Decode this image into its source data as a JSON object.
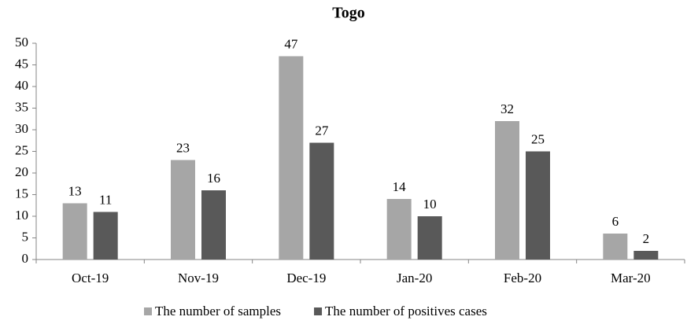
{
  "chart_data": {
    "type": "bar",
    "title": "Togo",
    "categories": [
      "Oct-19",
      "Nov-19",
      "Dec-19",
      "Jan-20",
      "Feb-20",
      "Mar-20"
    ],
    "series": [
      {
        "name": "The number of samples",
        "color": "#a6a6a6",
        "values": [
          13,
          23,
          47,
          14,
          32,
          6
        ]
      },
      {
        "name": "The number of positives cases",
        "color": "#595959",
        "values": [
          11,
          16,
          27,
          10,
          25,
          2
        ]
      }
    ],
    "ylim": [
      0,
      50
    ],
    "yticks": [
      0,
      5,
      10,
      15,
      20,
      25,
      30,
      35,
      40,
      45,
      50
    ],
    "grid": false,
    "legend": "bottom"
  }
}
